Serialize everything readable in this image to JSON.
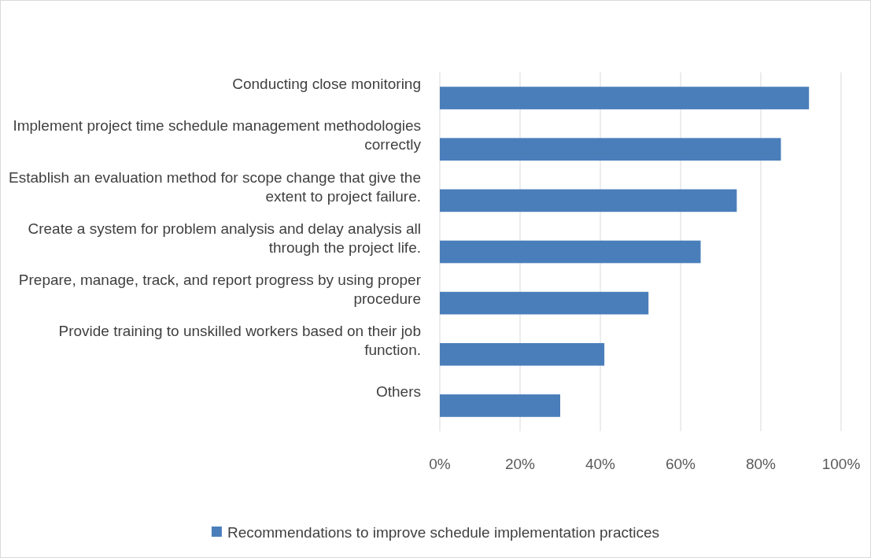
{
  "chart_data": {
    "type": "bar",
    "orientation": "horizontal",
    "categories": [
      "Conducting close monitoring",
      "Implement project time schedule management methodologies correctly",
      "Establish an evaluation method for scope change that give the extent to project failure.",
      "Create a system for problem analysis and delay analysis all through the project life.",
      "Prepare, manage, track, and report progress by using proper procedure",
      "Provide training to unskilled workers based on their job function.",
      "Others"
    ],
    "series": [
      {
        "name": "Recommendations to improve schedule implementation practices",
        "color": "#4a7ebb",
        "values": [
          92,
          85,
          74,
          65,
          52,
          41,
          30
        ]
      }
    ],
    "xlim": [
      0,
      100
    ],
    "xticks": [
      {
        "value": 0,
        "label": "0%"
      },
      {
        "value": 20,
        "label": "20%"
      },
      {
        "value": 40,
        "label": "40%"
      },
      {
        "value": 60,
        "label": "60%"
      },
      {
        "value": 80,
        "label": "80%"
      },
      {
        "value": 100,
        "label": "100%"
      }
    ],
    "grid": "x",
    "legend": "bottom"
  }
}
